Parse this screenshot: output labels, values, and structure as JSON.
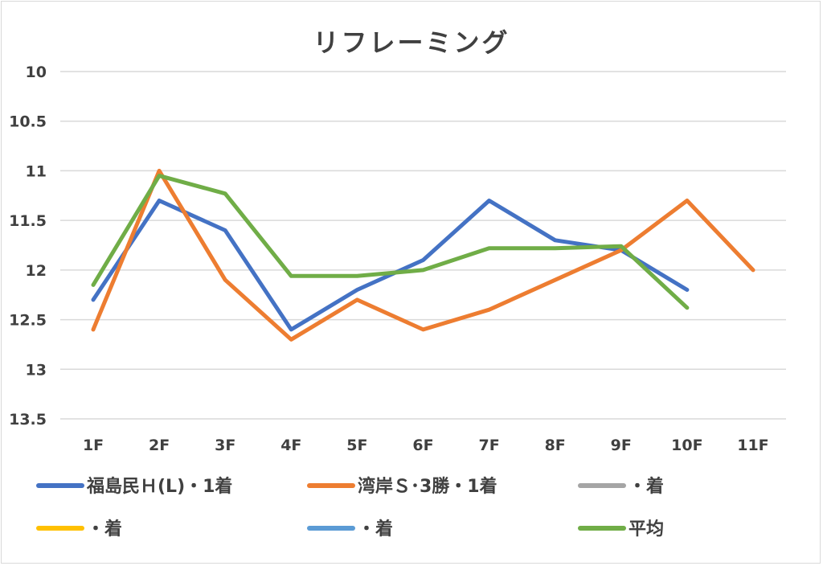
{
  "chart_data": {
    "type": "line",
    "title": "リフレーミング",
    "xlabel": "",
    "ylabel": "",
    "categories": [
      "1F",
      "2F",
      "3F",
      "4F",
      "5F",
      "6F",
      "7F",
      "8F",
      "9F",
      "10F",
      "11F"
    ],
    "ylim": [
      10,
      13.5
    ],
    "y_reversed": true,
    "y_ticks": [
      10,
      10.5,
      11,
      11.5,
      12,
      12.5,
      13,
      13.5
    ],
    "y_tick_labels": [
      "10",
      "10.5",
      "11",
      "11.5",
      "12",
      "12.5",
      "13",
      "13.5"
    ],
    "grid": true,
    "legend_position": "bottom",
    "series": [
      {
        "name": "福島民Ｈ(L)・1着",
        "color": "#4472c4",
        "values": [
          12.3,
          11.3,
          11.6,
          12.6,
          12.2,
          11.9,
          11.3,
          11.7,
          11.8,
          12.2,
          null
        ]
      },
      {
        "name": "湾岸Ｓ･3勝・1着",
        "color": "#ed7d31",
        "values": [
          12.6,
          11.0,
          12.1,
          12.7,
          12.3,
          12.6,
          12.4,
          12.1,
          11.8,
          11.3,
          12.0
        ]
      },
      {
        "name": "・着",
        "color": "#a5a5a5",
        "values": [
          null,
          null,
          null,
          null,
          null,
          null,
          null,
          null,
          null,
          null,
          null
        ]
      },
      {
        "name": "・着",
        "color": "#ffc000",
        "values": [
          null,
          null,
          null,
          null,
          null,
          null,
          null,
          null,
          null,
          null,
          null
        ]
      },
      {
        "name": "・着",
        "color": "#5b9bd5",
        "values": [
          null,
          null,
          null,
          null,
          null,
          null,
          null,
          null,
          null,
          null,
          null
        ]
      },
      {
        "name": "平均",
        "color": "#70ad47",
        "values": [
          12.15,
          11.05,
          11.23,
          12.06,
          12.06,
          12.0,
          11.78,
          11.78,
          11.76,
          12.38,
          null
        ]
      }
    ]
  }
}
